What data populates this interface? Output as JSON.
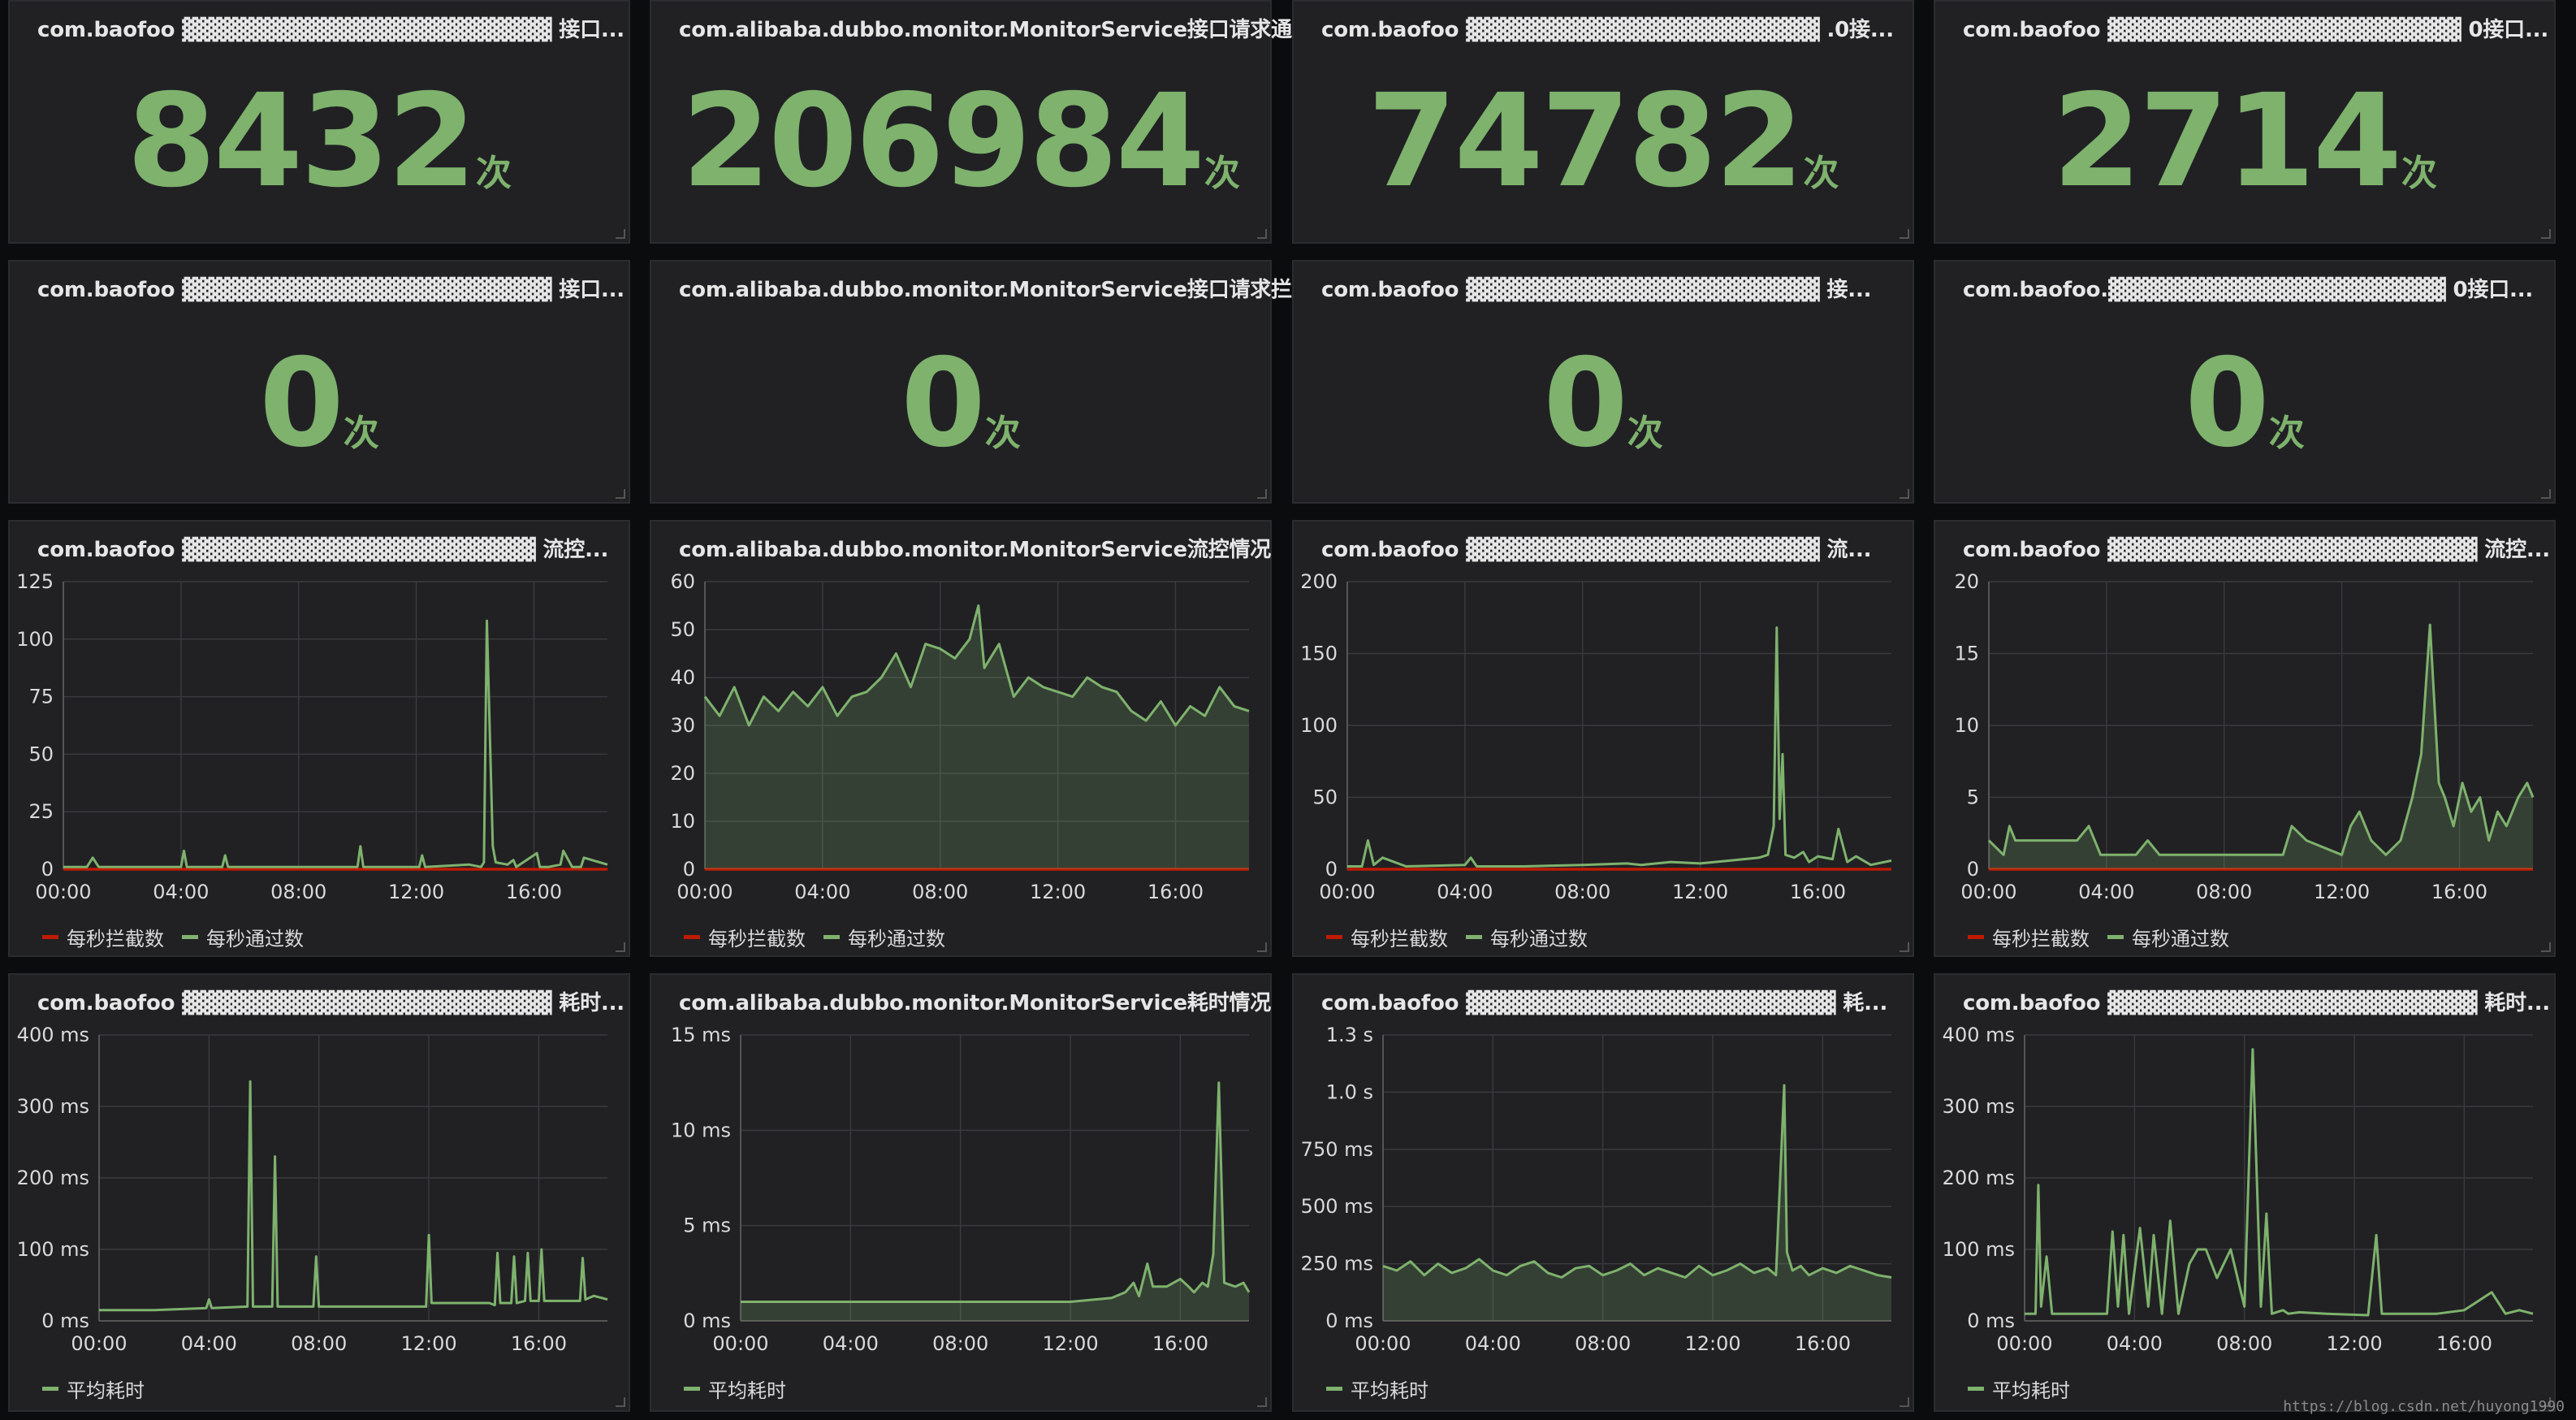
{
  "colors": {
    "pass": "#7eb26d",
    "block": "#bf1b00",
    "text": "#d8d9da",
    "axis": "#d8d9da",
    "grid": "#3a3a3e",
    "panel": "#212124"
  },
  "unit_ci": "次",
  "stats_pass": [
    {
      "title": "com.baofoo ▓▓▓▓▓▓▓▓▓▓▓▓▓▓▓▓▓▓▓▓▓▓▓ 接口...",
      "value": "8432"
    },
    {
      "title": "com.alibaba.dubbo.monitor.MonitorService接口请求通过数",
      "value": "206984"
    },
    {
      "title": "com.baofoo ▓▓▓▓▓▓▓▓▓▓▓▓▓▓▓▓▓▓▓▓▓▓ .0接...",
      "value": "74782"
    },
    {
      "title": "com.baofoo ▓▓▓▓▓▓▓▓▓▓▓▓▓▓▓▓▓▓▓▓▓▓ 0接口...",
      "value": "2714"
    }
  ],
  "stats_block": [
    {
      "title": "com.baofoo ▓▓▓▓▓▓▓▓▓▓▓▓▓▓▓▓▓▓▓▓▓▓▓ 接口...",
      "value": "0"
    },
    {
      "title": "com.alibaba.dubbo.monitor.MonitorService接口请求拦截数",
      "value": "0"
    },
    {
      "title": "com.baofoo ▓▓▓▓▓▓▓▓▓▓▓▓▓▓▓▓▓▓▓▓▓▓ 接...",
      "value": "0"
    },
    {
      "title": "com.baofoo.▓▓▓▓▓▓▓▓▓▓▓▓▓▓▓▓▓▓▓▓▓ 0接口...",
      "value": "0"
    }
  ],
  "flow_legend": [
    "每秒拦截数",
    "每秒通过数"
  ],
  "time_legend": [
    "平均耗时"
  ],
  "watermark": "https://blog.csdn.net/huyong1990",
  "chart_data": [
    {
      "type": "line",
      "title": "com.baofoo ▓▓▓▓▓▓▓▓▓▓▓▓▓▓▓▓▓▓▓▓▓▓ 流控...",
      "center": false,
      "x_ticks": [
        "00:00",
        "04:00",
        "08:00",
        "12:00",
        "16:00"
      ],
      "y_ticks": [
        "0",
        "25",
        "50",
        "75",
        "100",
        "125"
      ],
      "ylim": [
        0,
        125
      ],
      "series": [
        {
          "name": "每秒拦截数",
          "x": [
            0,
            18.5
          ],
          "values": [
            0,
            0
          ]
        },
        {
          "name": "每秒通过数",
          "x": [
            0,
            0.8,
            1,
            1.2,
            4,
            4.1,
            4.2,
            5.4,
            5.5,
            5.6,
            8,
            10,
            10.1,
            10.2,
            12.1,
            12.2,
            12.3,
            13.8,
            14.2,
            14.3,
            14.4,
            14.6,
            14.7,
            15.1,
            15.3,
            15.4,
            16.1,
            16.2,
            16.5,
            16.9,
            17,
            17.3,
            17.6,
            17.7,
            18.5
          ],
          "values": [
            1,
            1,
            5,
            1,
            1,
            8,
            1,
            1,
            6,
            1,
            1,
            1,
            10,
            1,
            1,
            6,
            1,
            2,
            1,
            3,
            108,
            10,
            3,
            2,
            4,
            1,
            7,
            1,
            1,
            2,
            8,
            1,
            1,
            5,
            2
          ]
        }
      ]
    },
    {
      "type": "area",
      "title": "com.alibaba.dubbo.monitor.MonitorService流控情况",
      "center": true,
      "x_ticks": [
        "00:00",
        "04:00",
        "08:00",
        "12:00",
        "16:00"
      ],
      "y_ticks": [
        "0",
        "10",
        "20",
        "30",
        "40",
        "50",
        "60"
      ],
      "ylim": [
        0,
        60
      ],
      "series": [
        {
          "name": "每秒拦截数",
          "x": [
            0,
            18.5
          ],
          "values": [
            0,
            0
          ]
        },
        {
          "name": "每秒通过数",
          "x": [
            0,
            0.5,
            1,
            1.5,
            2,
            2.5,
            3,
            3.5,
            4,
            4.5,
            5,
            5.5,
            6,
            6.5,
            7,
            7.5,
            8,
            8.5,
            9,
            9.3,
            9.5,
            10,
            10.5,
            11,
            11.5,
            12,
            12.5,
            13,
            13.5,
            14,
            14.5,
            15,
            15.5,
            16,
            16.5,
            17,
            17.5,
            18,
            18.5
          ],
          "values": [
            36,
            32,
            38,
            30,
            36,
            33,
            37,
            34,
            38,
            32,
            36,
            37,
            40,
            45,
            38,
            47,
            46,
            44,
            48,
            55,
            42,
            47,
            36,
            40,
            38,
            37,
            36,
            40,
            38,
            37,
            33,
            31,
            35,
            30,
            34,
            32,
            38,
            34,
            33
          ]
        }
      ]
    },
    {
      "type": "line",
      "title": "com.baofoo ▓▓▓▓▓▓▓▓▓▓▓▓▓▓▓▓▓▓▓▓▓▓ 流...",
      "center": false,
      "x_ticks": [
        "00:00",
        "04:00",
        "08:00",
        "12:00",
        "16:00"
      ],
      "y_ticks": [
        "0",
        "50",
        "100",
        "150",
        "200"
      ],
      "ylim": [
        0,
        200
      ],
      "series": [
        {
          "name": "每秒拦截数",
          "x": [
            0,
            18.5
          ],
          "values": [
            0,
            0
          ]
        },
        {
          "name": "每秒通过数",
          "x": [
            0,
            0.5,
            0.7,
            0.9,
            1.2,
            2,
            4,
            4.2,
            4.4,
            6,
            8,
            9.5,
            10,
            11,
            12,
            13,
            14,
            14.3,
            14.5,
            14.6,
            14.7,
            14.8,
            14.9,
            15.2,
            15.5,
            15.7,
            16,
            16.5,
            16.7,
            17,
            17.3,
            17.8,
            18.5
          ],
          "values": [
            2,
            2,
            20,
            3,
            8,
            2,
            3,
            8,
            2,
            2,
            3,
            4,
            3,
            5,
            4,
            6,
            8,
            10,
            30,
            168,
            35,
            80,
            10,
            8,
            12,
            5,
            9,
            7,
            28,
            5,
            9,
            3,
            6
          ]
        }
      ]
    },
    {
      "type": "area",
      "title": "com.baofoo ▓▓▓▓▓▓▓▓▓▓▓▓▓▓▓▓▓▓▓▓▓▓▓ 流控...",
      "center": false,
      "x_ticks": [
        "00:00",
        "04:00",
        "08:00",
        "12:00",
        "16:00"
      ],
      "y_ticks": [
        "0",
        "5",
        "10",
        "15",
        "20"
      ],
      "ylim": [
        0,
        20
      ],
      "series": [
        {
          "name": "每秒拦截数",
          "x": [
            0,
            18.5
          ],
          "values": [
            0,
            0
          ]
        },
        {
          "name": "每秒通过数",
          "x": [
            0,
            0.5,
            0.7,
            0.9,
            1.5,
            3,
            3.4,
            3.8,
            5,
            5.4,
            5.8,
            7,
            9,
            10,
            10.3,
            10.8,
            12,
            12.3,
            12.6,
            13,
            13.5,
            14,
            14.4,
            14.7,
            15,
            15.3,
            15.5,
            15.8,
            16.1,
            16.4,
            16.7,
            17,
            17.3,
            17.6,
            18,
            18.3,
            18.5
          ],
          "values": [
            2,
            1,
            3,
            2,
            2,
            2,
            3,
            1,
            1,
            2,
            1,
            1,
            1,
            1,
            3,
            2,
            1,
            3,
            4,
            2,
            1,
            2,
            5,
            8,
            17,
            6,
            5,
            3,
            6,
            4,
            5,
            2,
            4,
            3,
            5,
            6,
            5
          ]
        }
      ]
    },
    {
      "type": "line",
      "title": "com.baofoo ▓▓▓▓▓▓▓▓▓▓▓▓▓▓▓▓▓▓▓▓▓▓▓ 耗时...",
      "center": false,
      "x_ticks": [
        "00:00",
        "04:00",
        "08:00",
        "12:00",
        "16:00"
      ],
      "y_ticks": [
        "0 ms",
        "100 ms",
        "200 ms",
        "300 ms",
        "400 ms"
      ],
      "ylim": [
        0,
        400
      ],
      "series": [
        {
          "name": "平均耗时",
          "x": [
            0,
            2,
            3.9,
            4,
            4.1,
            5.4,
            5.5,
            5.6,
            6.3,
            6.4,
            6.5,
            7.8,
            7.9,
            8,
            9,
            11.9,
            12,
            12.1,
            14.2,
            14.4,
            14.5,
            14.6,
            15,
            15.1,
            15.2,
            15.5,
            15.6,
            15.7,
            16,
            16.1,
            16.2,
            16.5,
            17.5,
            17.6,
            17.7,
            18,
            18.5
          ],
          "values": [
            15,
            15,
            18,
            30,
            18,
            20,
            335,
            20,
            20,
            230,
            20,
            20,
            90,
            20,
            20,
            20,
            120,
            25,
            25,
            22,
            95,
            25,
            25,
            90,
            25,
            28,
            95,
            28,
            28,
            100,
            28,
            28,
            28,
            88,
            30,
            35,
            30
          ]
        }
      ]
    },
    {
      "type": "area",
      "title": "com.alibaba.dubbo.monitor.MonitorService耗时情况",
      "center": true,
      "x_ticks": [
        "00:00",
        "04:00",
        "08:00",
        "12:00",
        "16:00"
      ],
      "y_ticks": [
        "0 ms",
        "5 ms",
        "10 ms",
        "15 ms"
      ],
      "ylim": [
        0,
        15
      ],
      "series": [
        {
          "name": "平均耗时",
          "x": [
            0,
            2,
            4,
            5,
            6,
            8,
            10,
            12,
            13.5,
            14,
            14.3,
            14.5,
            14.8,
            15,
            15.5,
            16,
            16.3,
            16.5,
            16.8,
            17,
            17.2,
            17.4,
            17.6,
            18,
            18.3,
            18.5
          ],
          "values": [
            1,
            1,
            1,
            1,
            1,
            1,
            1,
            1,
            1.2,
            1.5,
            2,
            1.3,
            3,
            1.8,
            1.8,
            2.2,
            1.8,
            1.5,
            2,
            1.8,
            3.5,
            12.5,
            2,
            1.8,
            2,
            1.5
          ]
        }
      ]
    },
    {
      "type": "area",
      "title": "com.baofoo ▓▓▓▓▓▓▓▓▓▓▓▓▓▓▓▓▓▓▓▓▓▓▓ 耗...",
      "center": false,
      "x_ticks": [
        "00:00",
        "04:00",
        "08:00",
        "12:00",
        "16:00"
      ],
      "y_ticks": [
        "0 ms",
        "250 ms",
        "500 ms",
        "750 ms",
        "1.0 s",
        "1.3 s"
      ],
      "ylim": [
        0,
        1250
      ],
      "series": [
        {
          "name": "平均耗时",
          "x": [
            0,
            0.5,
            1,
            1.5,
            2,
            2.5,
            3,
            3.5,
            4,
            4.5,
            5,
            5.5,
            6,
            6.5,
            7,
            7.5,
            8,
            8.5,
            9,
            9.5,
            10,
            10.5,
            11,
            11.5,
            12,
            12.5,
            13,
            13.5,
            14,
            14.3,
            14.6,
            14.7,
            14.9,
            15.2,
            15.5,
            16,
            16.5,
            17,
            17.5,
            18,
            18.5
          ],
          "values": [
            240,
            220,
            260,
            200,
            250,
            210,
            230,
            270,
            220,
            200,
            240,
            260,
            210,
            190,
            230,
            240,
            200,
            220,
            250,
            200,
            230,
            210,
            190,
            240,
            200,
            220,
            250,
            210,
            230,
            200,
            1030,
            300,
            220,
            240,
            200,
            230,
            210,
            240,
            220,
            200,
            190
          ]
        }
      ]
    },
    {
      "type": "line",
      "title": "com.baofoo ▓▓▓▓▓▓▓▓▓▓▓▓▓▓▓▓▓▓▓▓▓▓▓ 耗时...",
      "center": false,
      "x_ticks": [
        "00:00",
        "04:00",
        "08:00",
        "12:00",
        "16:00"
      ],
      "y_ticks": [
        "0 ms",
        "100 ms",
        "200 ms",
        "300 ms",
        "400 ms"
      ],
      "ylim": [
        0,
        400
      ],
      "series": [
        {
          "name": "平均耗时",
          "x": [
            0,
            0.4,
            0.5,
            0.6,
            0.8,
            1,
            2,
            3,
            3.2,
            3.4,
            3.6,
            3.8,
            4.2,
            4.5,
            4.7,
            5,
            5.3,
            5.6,
            6,
            6.3,
            6.6,
            7,
            7.5,
            8,
            8.3,
            8.6,
            8.8,
            9,
            9.4,
            9.6,
            10,
            11,
            12.5,
            12.8,
            13,
            14,
            15,
            16,
            17,
            17.5,
            18,
            18.5
          ],
          "values": [
            10,
            10,
            190,
            20,
            90,
            10,
            10,
            10,
            125,
            20,
            120,
            10,
            130,
            20,
            120,
            10,
            140,
            10,
            80,
            100,
            100,
            60,
            100,
            20,
            380,
            20,
            150,
            10,
            15,
            10,
            12,
            10,
            8,
            120,
            10,
            10,
            10,
            15,
            40,
            10,
            15,
            10
          ]
        }
      ]
    }
  ]
}
